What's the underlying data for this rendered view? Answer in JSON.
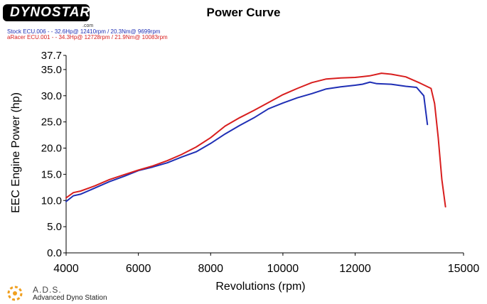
{
  "header": {
    "logo_text": "DYNOSTAR",
    "logo_suffix": ".com",
    "title": "Power Curve"
  },
  "legend": {
    "line1": "Stock ECU.006 -  - 32.6Hp@ 12410rpm / 20.3Nm@ 9699rpm",
    "line2": "aRacer ECU.001 -  - 34.3Hp@ 12728rpm / 21.9Nm@ 10083rpm"
  },
  "footer": {
    "name": "A.D.S.",
    "subtitle": "Advanced Dyno Station"
  },
  "colors": {
    "stock": "#1f2fb5",
    "aracer": "#d81e1e"
  },
  "chart_data": {
    "type": "line",
    "xlabel": "Revolutions (rpm)",
    "ylabel": "EEC Engine Power (hp)",
    "xlim": [
      4000,
      15000
    ],
    "ylim": [
      0,
      37.7
    ],
    "x_ticks": [
      "4000",
      "6000",
      "8000",
      "10000",
      "12000",
      "15000"
    ],
    "x_tick_values": [
      4000,
      6000,
      8000,
      10000,
      12000,
      15000
    ],
    "y_ticks": [
      "0.0",
      "5.0",
      "10.0",
      "15.0",
      "20.0",
      "25.0",
      "30.0",
      "35.0",
      "37.7"
    ],
    "y_tick_values": [
      0,
      5,
      10,
      15,
      20,
      25,
      30,
      35,
      37.7
    ],
    "grid": false,
    "series": [
      {
        "name": "Stock ECU.006",
        "color": "#1f2fb5",
        "x": [
          4000,
          4200,
          4400,
          4800,
          5200,
          5600,
          6000,
          6400,
          6800,
          7200,
          7600,
          8000,
          8400,
          8800,
          9200,
          9600,
          10000,
          10400,
          10800,
          11200,
          11600,
          12000,
          12200,
          12410,
          12600,
          13000,
          13400,
          13700,
          13900,
          14000
        ],
        "y": [
          9.8,
          10.9,
          11.2,
          12.4,
          13.6,
          14.6,
          15.7,
          16.4,
          17.2,
          18.3,
          19.3,
          20.9,
          22.7,
          24.3,
          25.8,
          27.5,
          28.6,
          29.6,
          30.4,
          31.3,
          31.7,
          32.0,
          32.2,
          32.6,
          32.3,
          32.2,
          31.8,
          31.6,
          30.0,
          24.5
        ]
      },
      {
        "name": "aRacer ECU.001",
        "color": "#d81e1e",
        "x": [
          4000,
          4200,
          4400,
          4800,
          5200,
          5600,
          6000,
          6400,
          6800,
          7200,
          7600,
          8000,
          8400,
          8800,
          9200,
          9600,
          10000,
          10400,
          10800,
          11200,
          11600,
          12000,
          12400,
          12728,
          13000,
          13400,
          13800,
          14100,
          14200,
          14300,
          14400,
          14500
        ],
        "y": [
          10.5,
          11.5,
          11.8,
          12.8,
          14.0,
          14.9,
          15.8,
          16.6,
          17.6,
          18.8,
          20.2,
          22.0,
          24.2,
          25.8,
          27.2,
          28.7,
          30.2,
          31.4,
          32.5,
          33.2,
          33.4,
          33.5,
          33.8,
          34.3,
          34.1,
          33.6,
          32.4,
          31.4,
          28.5,
          22.0,
          14.0,
          8.8
        ]
      }
    ]
  }
}
